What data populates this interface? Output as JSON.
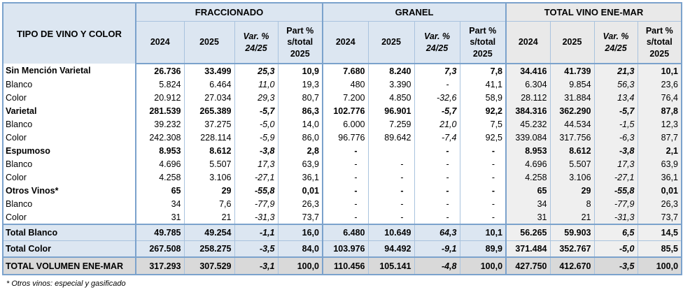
{
  "table": {
    "corner_header": "TIPO DE VINO Y COLOR",
    "groups": [
      {
        "key": "fraccionado",
        "label": "FRACCIONADO"
      },
      {
        "key": "granel",
        "label": "GRANEL"
      },
      {
        "key": "total-vino-ene-mar",
        "label": "TOTAL VINO ENE-MAR"
      }
    ],
    "sub_columns": [
      {
        "key": "2024",
        "lines": [
          "2024"
        ],
        "italic": false
      },
      {
        "key": "2025",
        "lines": [
          "2025"
        ],
        "italic": false
      },
      {
        "key": "var-24-25",
        "lines": [
          "Var. %",
          "24/25"
        ],
        "italic": true
      },
      {
        "key": "part-s-total-2025",
        "lines": [
          "Part %",
          "s/total",
          "2025"
        ],
        "italic": false
      }
    ],
    "rows": [
      {
        "label": "Sin Mención Varietal",
        "style": "parent",
        "cells": [
          "26.736",
          "33.499",
          "25,3",
          "10,9",
          "7.680",
          "8.240",
          "7,3",
          "7,8",
          "34.416",
          "41.739",
          "21,3",
          "10,1"
        ]
      },
      {
        "label": "Blanco",
        "style": "child",
        "cells": [
          "5.824",
          "6.464",
          "11,0",
          "19,3",
          "480",
          "3.390",
          "-",
          "41,1",
          "6.304",
          "9.854",
          "56,3",
          "23,6"
        ]
      },
      {
        "label": "Color",
        "style": "child",
        "cells": [
          "20.912",
          "27.034",
          "29,3",
          "80,7",
          "7.200",
          "4.850",
          "-32,6",
          "58,9",
          "28.112",
          "31.884",
          "13,4",
          "76,4"
        ]
      },
      {
        "label": "Varietal",
        "style": "parent",
        "cells": [
          "281.539",
          "265.389",
          "-5,7",
          "86,3",
          "102.776",
          "96.901",
          "-5,7",
          "92,2",
          "384.316",
          "362.290",
          "-5,7",
          "87,8"
        ]
      },
      {
        "label": "Blanco",
        "style": "child",
        "cells": [
          "39.232",
          "37.275",
          "-5,0",
          "14,0",
          "6.000",
          "7.259",
          "21,0",
          "7,5",
          "45.232",
          "44.534",
          "-1,5",
          "12,3"
        ]
      },
      {
        "label": "Color",
        "style": "child",
        "cells": [
          "242.308",
          "228.114",
          "-5,9",
          "86,0",
          "96.776",
          "89.642",
          "-7,4",
          "92,5",
          "339.084",
          "317.756",
          "-6,3",
          "87,7"
        ]
      },
      {
        "label": "Espumoso",
        "style": "parent",
        "cells": [
          "8.953",
          "8.612",
          "-3,8",
          "2,8",
          "-",
          "",
          "-",
          "-",
          "8.953",
          "8.612",
          "-3,8",
          "2,1"
        ]
      },
      {
        "label": "Blanco",
        "style": "child",
        "cells": [
          "4.696",
          "5.507",
          "17,3",
          "63,9",
          "-",
          "-",
          "-",
          "-",
          "4.696",
          "5.507",
          "17,3",
          "63,9"
        ]
      },
      {
        "label": "Color",
        "style": "child",
        "cells": [
          "4.258",
          "3.106",
          "-27,1",
          "36,1",
          "-",
          "-",
          "-",
          "-",
          "4.258",
          "3.106",
          "-27,1",
          "36,1"
        ]
      },
      {
        "label": "Otros Vinos*",
        "style": "parent",
        "cells": [
          "65",
          "29",
          "-55,8",
          "0,01",
          "-",
          "-",
          "-",
          "-",
          "65",
          "29",
          "-55,8",
          "0,01"
        ]
      },
      {
        "label": "Blanco",
        "style": "child",
        "cells": [
          "34",
          "7,6",
          "-77,9",
          "26,3",
          "-",
          "-",
          "-",
          "-",
          "34",
          "8",
          "-77,9",
          "26,3"
        ]
      },
      {
        "label": "Color",
        "style": "child",
        "cells": [
          "31",
          "21",
          "-31,3",
          "73,7",
          "-",
          "-",
          "-",
          "-",
          "31",
          "21",
          "-31,3",
          "73,7"
        ]
      },
      {
        "label": "Total Blanco",
        "style": "total total-first",
        "cells": [
          "49.785",
          "49.254",
          "-1,1",
          "16,0",
          "6.480",
          "10.649",
          "64,3",
          "10,1",
          "56.265",
          "59.903",
          "6,5",
          "14,5"
        ]
      },
      {
        "label": "Total Color",
        "style": "total",
        "cells": [
          "267.508",
          "258.275",
          "-3,5",
          "84,0",
          "103.976",
          "94.492",
          "-9,1",
          "89,9",
          "371.484",
          "352.767",
          "-5,0",
          "85,5"
        ]
      },
      {
        "label": "TOTAL VOLUMEN ENE-MAR",
        "style": "grand",
        "cells": [
          "317.293",
          "307.529",
          "-3,1",
          "100,0",
          "110.456",
          "105.141",
          "-4,8",
          "100,0",
          "427.750",
          "412.670",
          "-3,5",
          "100,0"
        ]
      }
    ]
  },
  "footnote": "* Otros vinos: especial y gasificado",
  "colors": {
    "header_blue": "#dce6f1",
    "header_gray": "#e9e9e9",
    "total_section_bg": "#efefef",
    "total_row_bg": "#dce6f1",
    "grand_row_bg": "#d9d9d9",
    "border_thick": "#7ba2cc",
    "border_thin": "#a9c3de"
  }
}
